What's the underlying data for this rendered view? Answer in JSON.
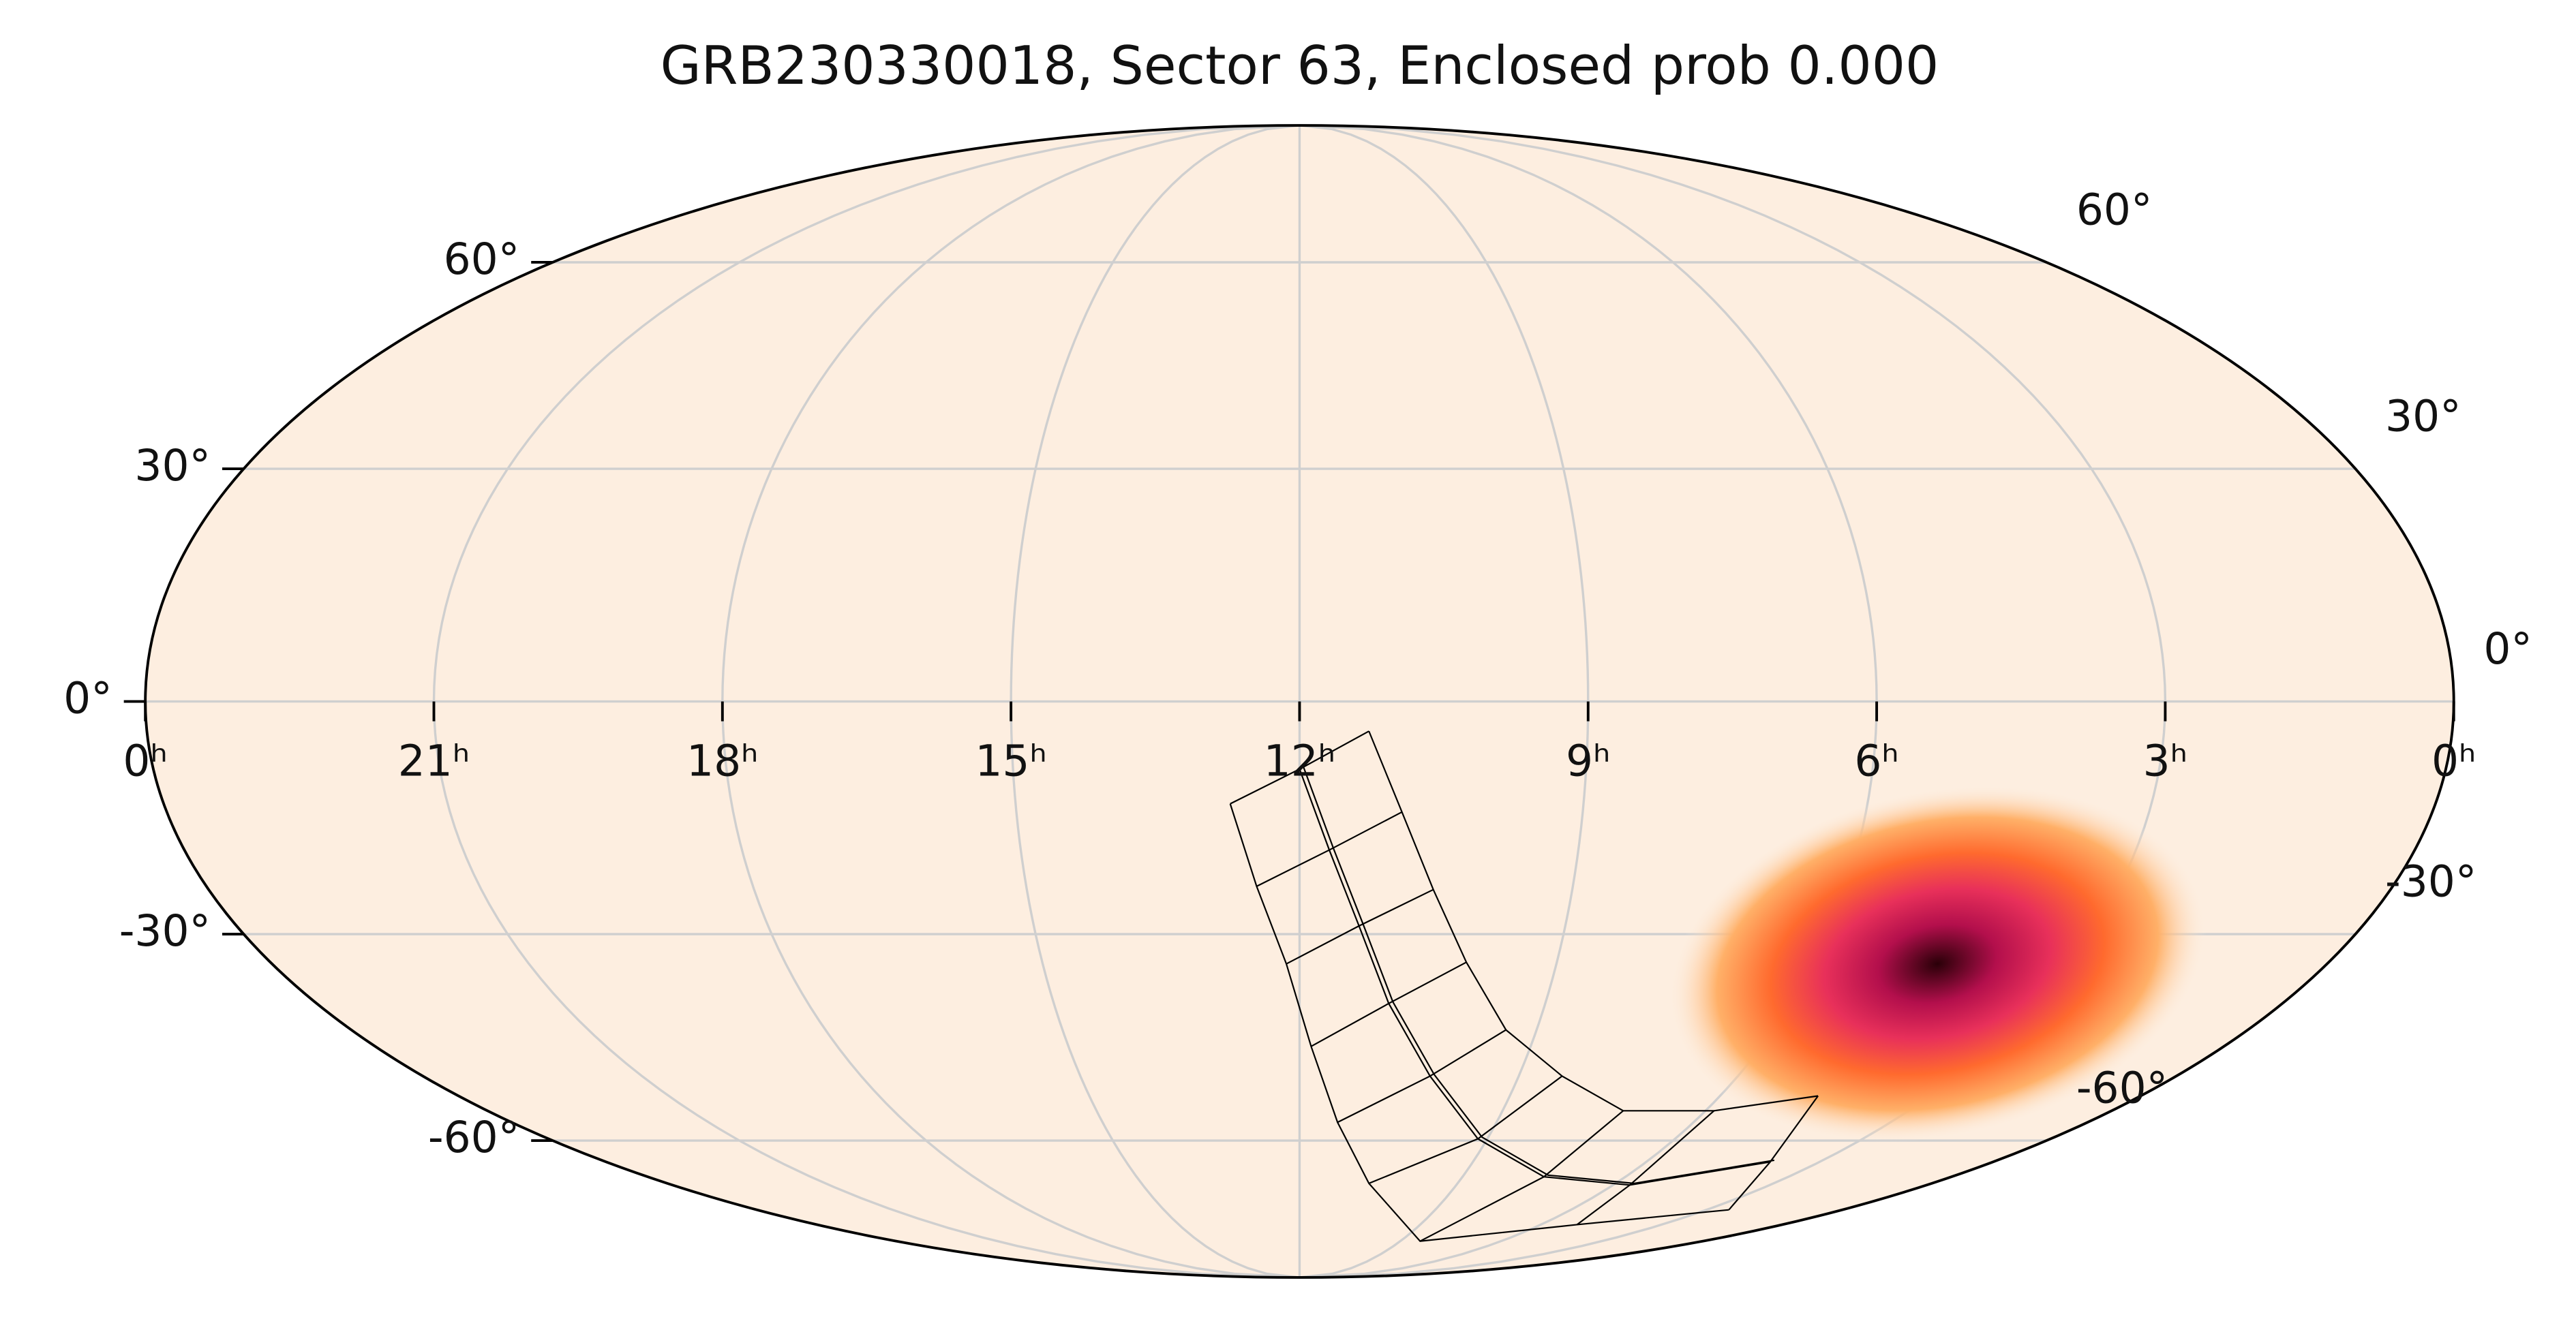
{
  "chart_data": {
    "type": "mollweide",
    "title": "GRB230330018, Sector 63, Enclosed prob 0.000",
    "xlim": [
      24,
      0
    ],
    "ylim": [
      -90,
      90
    ],
    "xticks": [
      {
        "value": 24,
        "label": "0ʰ"
      },
      {
        "value": 21,
        "label": "21ʰ"
      },
      {
        "value": 18,
        "label": "18ʰ"
      },
      {
        "value": 15,
        "label": "15ʰ"
      },
      {
        "value": 12,
        "label": "12ʰ"
      },
      {
        "value": 9,
        "label": "9ʰ"
      },
      {
        "value": 6,
        "label": "6ʰ"
      },
      {
        "value": 3,
        "label": "3ʰ"
      },
      {
        "value": 0,
        "label": "0ʰ"
      }
    ],
    "yticks": [
      {
        "value": 60,
        "label": "60°"
      },
      {
        "value": 30,
        "label": "30°"
      },
      {
        "value": 0,
        "label": "0°"
      },
      {
        "value": -30,
        "label": "-30°"
      },
      {
        "value": -60,
        "label": "-60°"
      }
    ],
    "grid": true,
    "background": "#fdeee0",
    "x": [
      4.55
    ],
    "values": [
      -34
    ],
    "colors": [
      "#2a0008",
      "#b30f4c",
      "#e8305a",
      "#ff6a2e",
      "#ffb068"
    ]
  }
}
